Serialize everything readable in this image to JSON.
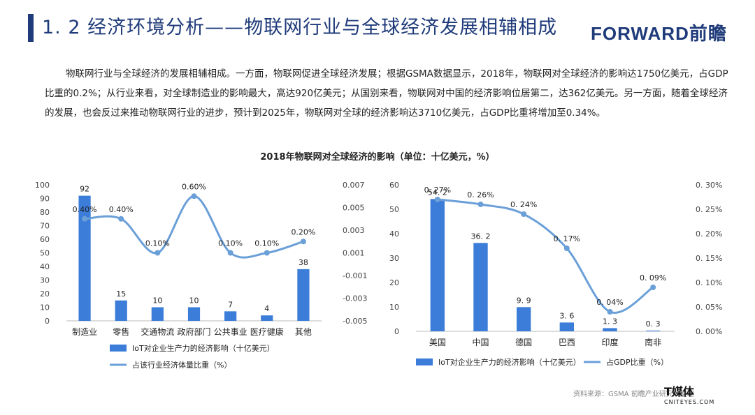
{
  "header": {
    "title": "1. 2  经济环境分析——物联网行业与全球经济发展相辅相成",
    "logo": "FORWARD前瞻"
  },
  "paragraph": "物联网行业与全球经济的发展相辅相成。一方面，物联网促进全球经济发展；根据GSMA数据显示，2018年，物联网对全球经济的影响达1750亿美元，占GDP比重的0.2%；从行业来看，对全球制造业的影响最大，高达920亿美元；从国别来看，物联网对中国的经济影响位居第二，达362亿美元。另一方面，随着全球经济的发展，也会反过来推动物联网行业的进步，预计到2025年，物联网对全球的经济影响达3710亿美元，占GDP比重将增加至0.34%。",
  "chart_title": "2018年物联网对全球经济的影响（单位：十亿美元，%）",
  "chart_data": [
    {
      "type": "bar",
      "categories": [
        "制造业",
        "零售",
        "交通物流",
        "政府部门",
        "公共事业",
        "医疗健康",
        "其他"
      ],
      "series": [
        {
          "name": "IoT对企业生产力的经济影响（十亿美元）",
          "type": "bar",
          "axis": "left",
          "values": [
            92,
            15,
            10,
            10,
            7,
            4,
            38
          ],
          "labels": [
            "92",
            "15",
            "10",
            "10",
            "7",
            "4",
            "38"
          ]
        },
        {
          "name": "占该行业经济体量比重（%）",
          "type": "line",
          "axis": "right",
          "values": [
            0.004,
            0.004,
            0.001,
            0.006,
            0.001,
            0.001,
            0.002
          ],
          "labels": [
            "0.40%",
            "0.40%",
            "0.10%",
            "0.60%",
            "0.10%",
            "0.10%",
            "0.20%"
          ]
        }
      ],
      "left_axis": {
        "min": 0,
        "max": 100,
        "ticks": [
          "0",
          "10",
          "20",
          "30",
          "40",
          "50",
          "60",
          "70",
          "80",
          "90",
          "100"
        ]
      },
      "right_axis": {
        "min": -0.005,
        "max": 0.007,
        "ticks": [
          "-0.005",
          "-0.003",
          "-0.001",
          "0.001",
          "0.003",
          "0.005",
          "0.007"
        ]
      },
      "colors": {
        "bar": "#3b7dd8",
        "line": "#6a9fd8"
      }
    },
    {
      "type": "bar",
      "categories": [
        "美国",
        "中国",
        "德国",
        "巴西",
        "印度",
        "南非"
      ],
      "series": [
        {
          "name": "IoT对企业生产力的经济影响（十亿美元）",
          "type": "bar",
          "axis": "left",
          "values": [
            54.2,
            36.2,
            9.9,
            3.6,
            1.3,
            0.3
          ],
          "labels": [
            "54. 2",
            "36. 2",
            "9. 9",
            "3. 6",
            "1. 3",
            "0. 3"
          ]
        },
        {
          "name": "占GDP比重（%）",
          "type": "line",
          "axis": "right",
          "values": [
            0.27,
            0.26,
            0.24,
            0.17,
            0.04,
            0.09
          ],
          "labels": [
            "0. 27%",
            "0. 26%",
            "0. 24%",
            "0. 17%",
            "0. 04%",
            "0. 09%"
          ]
        }
      ],
      "left_axis": {
        "min": 0,
        "max": 60,
        "ticks": [
          "0",
          "10",
          "20",
          "30",
          "40",
          "50",
          "60"
        ]
      },
      "right_axis": {
        "min": 0,
        "max": 0.3,
        "ticks": [
          "0. 00%",
          "0. 05%",
          "0. 10%",
          "0. 15%",
          "0. 20%",
          "0. 25%",
          "0. 30%"
        ]
      },
      "colors": {
        "bar": "#3b7dd8",
        "line": "#6a9fd8"
      }
    }
  ],
  "source": "资料来源：GSMA 前瞻产业研究院整理",
  "watermark": {
    "main": "T媒体",
    "sub": "CNITEYES.COM"
  }
}
